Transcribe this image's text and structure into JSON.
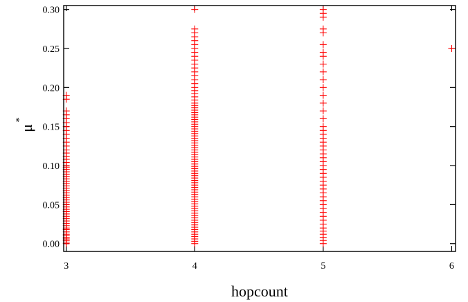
{
  "chart_data": {
    "type": "scatter",
    "marker": "plus",
    "color": "#ff0000",
    "xlabel": "hopcount",
    "ylabel": "μ",
    "ylabel_superscript": "*",
    "xlim": [
      2.98,
      6.03
    ],
    "ylim": [
      -0.01,
      0.305
    ],
    "grid": false,
    "x_ticks": [
      {
        "value": 3,
        "label": "3"
      },
      {
        "value": 4,
        "label": "4"
      },
      {
        "value": 5,
        "label": "5"
      },
      {
        "value": 6,
        "label": "6"
      }
    ],
    "y_ticks": [
      {
        "value": 0.0,
        "label": "0.00"
      },
      {
        "value": 0.05,
        "label": "0.05"
      },
      {
        "value": 0.1,
        "label": "0.10"
      },
      {
        "value": 0.15,
        "label": "0.15"
      },
      {
        "value": 0.2,
        "label": "0.20"
      },
      {
        "value": 0.25,
        "label": "0.25"
      },
      {
        "value": 0.3,
        "label": "0.30"
      }
    ],
    "series": [
      {
        "x": 3,
        "values": [
          0.0,
          0.002,
          0.004,
          0.006,
          0.008,
          0.01,
          0.012,
          0.015,
          0.018,
          0.02,
          0.023,
          0.026,
          0.029,
          0.032,
          0.035,
          0.038,
          0.041,
          0.044,
          0.047,
          0.05,
          0.053,
          0.056,
          0.059,
          0.062,
          0.065,
          0.068,
          0.071,
          0.074,
          0.077,
          0.08,
          0.083,
          0.086,
          0.089,
          0.092,
          0.095,
          0.098,
          0.1,
          0.104,
          0.108,
          0.112,
          0.116,
          0.12,
          0.125,
          0.13,
          0.135,
          0.14,
          0.145,
          0.15,
          0.155,
          0.16,
          0.165,
          0.17,
          0.185,
          0.19
        ]
      },
      {
        "x": 4,
        "values": [
          0.0,
          0.003,
          0.006,
          0.009,
          0.012,
          0.015,
          0.018,
          0.021,
          0.024,
          0.027,
          0.03,
          0.033,
          0.036,
          0.039,
          0.042,
          0.045,
          0.048,
          0.051,
          0.054,
          0.057,
          0.06,
          0.063,
          0.066,
          0.069,
          0.072,
          0.075,
          0.078,
          0.081,
          0.084,
          0.087,
          0.09,
          0.093,
          0.096,
          0.099,
          0.102,
          0.105,
          0.108,
          0.111,
          0.114,
          0.117,
          0.12,
          0.123,
          0.126,
          0.129,
          0.132,
          0.135,
          0.138,
          0.141,
          0.144,
          0.147,
          0.15,
          0.153,
          0.156,
          0.159,
          0.162,
          0.165,
          0.168,
          0.171,
          0.174,
          0.177,
          0.18,
          0.184,
          0.188,
          0.192,
          0.196,
          0.2,
          0.205,
          0.21,
          0.215,
          0.22,
          0.225,
          0.23,
          0.235,
          0.24,
          0.245,
          0.25,
          0.255,
          0.26,
          0.265,
          0.27,
          0.275,
          0.3
        ]
      },
      {
        "x": 5,
        "values": [
          0.0,
          0.004,
          0.008,
          0.012,
          0.016,
          0.02,
          0.025,
          0.03,
          0.035,
          0.04,
          0.045,
          0.05,
          0.055,
          0.06,
          0.065,
          0.07,
          0.075,
          0.08,
          0.085,
          0.09,
          0.095,
          0.1,
          0.105,
          0.11,
          0.115,
          0.12,
          0.125,
          0.13,
          0.135,
          0.14,
          0.145,
          0.15,
          0.16,
          0.17,
          0.18,
          0.19,
          0.2,
          0.21,
          0.22,
          0.23,
          0.24,
          0.245,
          0.255,
          0.27,
          0.275,
          0.29,
          0.295,
          0.3
        ]
      },
      {
        "x": 6,
        "values": [
          0.25
        ]
      }
    ]
  }
}
